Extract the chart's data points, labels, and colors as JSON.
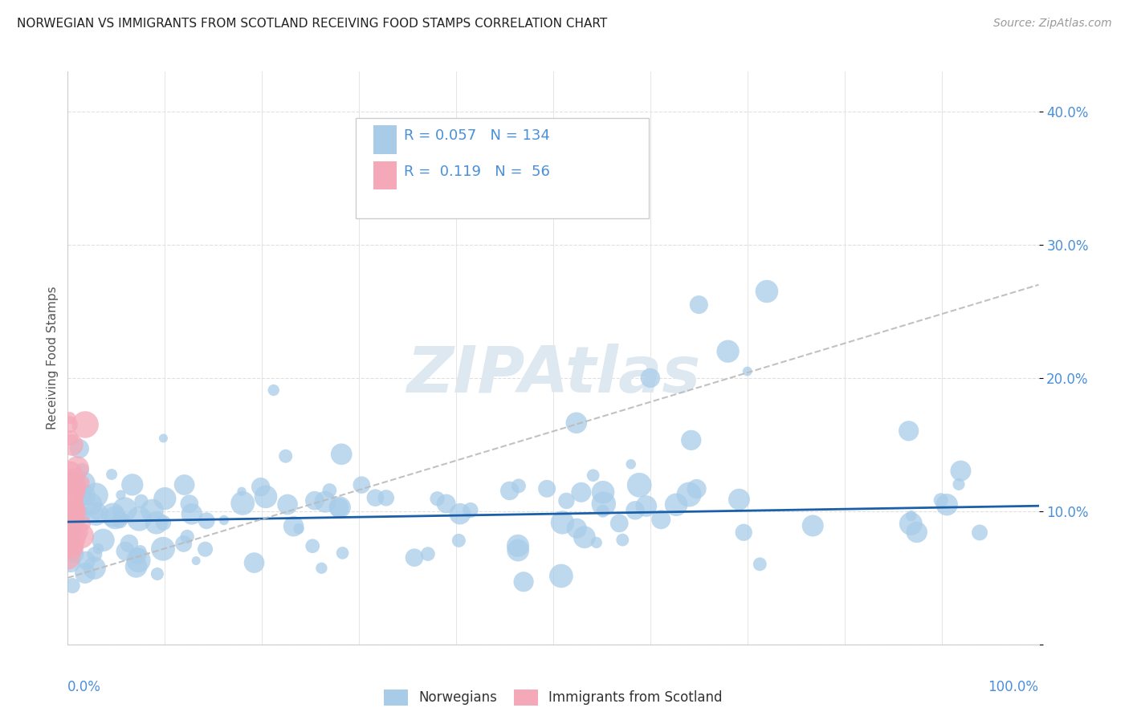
{
  "title": "NORWEGIAN VS IMMIGRANTS FROM SCOTLAND RECEIVING FOOD STAMPS CORRELATION CHART",
  "source": "Source: ZipAtlas.com",
  "ylabel": "Receiving Food Stamps",
  "legend_label1": "Norwegians",
  "legend_label2": "Immigrants from Scotland",
  "r1": "0.057",
  "n1": "134",
  "r2": "0.119",
  "n2": "56",
  "blue_color": "#a8cce8",
  "pink_color": "#f4a8b8",
  "blue_line_color": "#1a5fa8",
  "dashed_line_color": "#bbbbbb",
  "background_color": "#ffffff",
  "grid_color": "#e0e0e0",
  "watermark_color": "#dde8f0",
  "title_color": "#222222",
  "source_color": "#999999",
  "axis_label_color": "#4a90d9",
  "legend_r_color": "#4a90d9",
  "ytick_vals": [
    0,
    10,
    20,
    30,
    40
  ],
  "ytick_labels": [
    "",
    "10.0%",
    "20.0%",
    "30.0%",
    "40.0%"
  ],
  "ymax": 43,
  "xmax": 100,
  "blue_trend_intercept": 9.2,
  "blue_trend_slope": 0.012,
  "dash_trend_intercept": 5.0,
  "dash_trend_slope": 0.22
}
